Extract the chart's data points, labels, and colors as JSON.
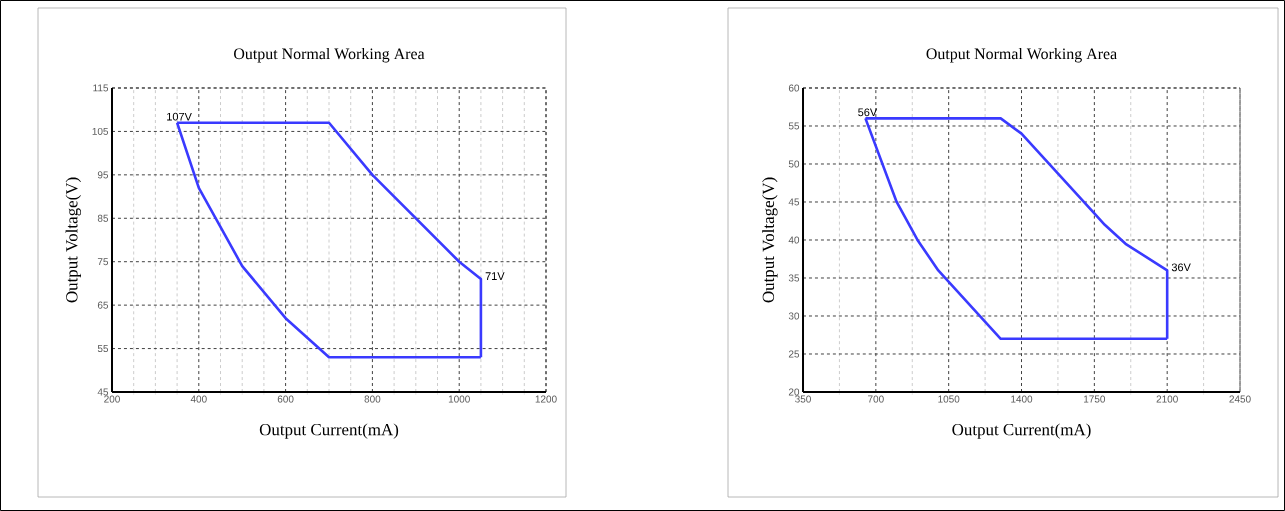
{
  "chart_data": [
    {
      "type": "line",
      "title": "Output Normal Working Area",
      "xlabel": "Output Current(mA)",
      "ylabel": "Output Voltage(V)",
      "xlim": [
        200,
        1200
      ],
      "xticks": [
        200,
        400,
        600,
        800,
        1000,
        1200
      ],
      "ylim": [
        45,
        115
      ],
      "yticks": [
        45,
        55,
        65,
        75,
        85,
        95,
        105,
        115
      ],
      "grid": true,
      "series": [
        {
          "color": "#3a3aff",
          "x": [
            350,
            700,
            800,
            1000,
            1050,
            1050
          ],
          "values": [
            107,
            107,
            95,
            75,
            71,
            53
          ]
        },
        {
          "color": "#3a3aff",
          "x": [
            350,
            400,
            500,
            600,
            700,
            1050
          ],
          "values": [
            107,
            92,
            74,
            62,
            53,
            53
          ]
        }
      ],
      "annotations": [
        {
          "text": "107V",
          "x": 350,
          "y": 107
        },
        {
          "text": "71V",
          "x": 1050,
          "y": 71
        }
      ]
    },
    {
      "type": "line",
      "title": "Output Normal Working Area",
      "xlabel": "Output Current(mA)",
      "ylabel": "Output Voltage(V)",
      "xlim": [
        350,
        2450
      ],
      "xticks": [
        350,
        700,
        1050,
        1400,
        1750,
        2100,
        2450
      ],
      "ylim": [
        20,
        60
      ],
      "yticks": [
        20,
        25,
        30,
        35,
        40,
        45,
        50,
        55,
        60
      ],
      "grid": true,
      "series": [
        {
          "color": "#3a3aff",
          "x": [
            650,
            1300,
            1400,
            1750,
            1800,
            1900,
            2100,
            2100
          ],
          "values": [
            56,
            56,
            54,
            43.5,
            42,
            39.5,
            36,
            27
          ]
        },
        {
          "color": "#3a3aff",
          "x": [
            650,
            800,
            900,
            1000,
            1300,
            2100
          ],
          "values": [
            56,
            45,
            40,
            36,
            27,
            27
          ]
        }
      ],
      "annotations": [
        {
          "text": "56V",
          "x": 650,
          "y": 56
        },
        {
          "text": "36V",
          "x": 2100,
          "y": 36
        }
      ]
    }
  ]
}
